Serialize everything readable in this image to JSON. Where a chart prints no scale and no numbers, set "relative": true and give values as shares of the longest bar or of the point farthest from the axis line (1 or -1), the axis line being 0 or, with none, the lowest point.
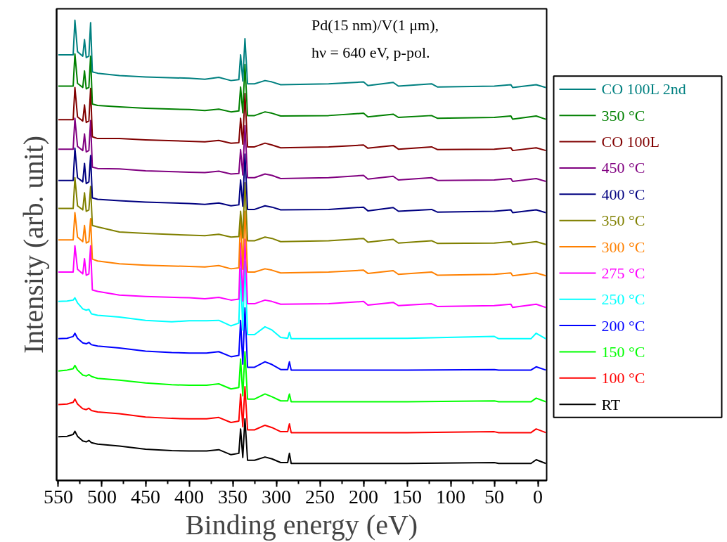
{
  "chart_data": {
    "type": "line",
    "relative": true,
    "xlabel": "Binding energy (eV)",
    "ylabel": "Intensity (arb. unit)",
    "xlim": [
      552,
      -10
    ],
    "xticks": [
      550,
      500,
      450,
      400,
      350,
      300,
      250,
      200,
      150,
      100,
      50,
      0
    ],
    "legend": "right",
    "grid": false,
    "annotations": [
      "Pd(15 nm)/V(1 μm),",
      "hν = 640 eV, p-pol."
    ],
    "series": [
      {
        "name": "CO 100L 2nd",
        "color": "#008080",
        "x": [
          550,
          540,
          533,
          531,
          528,
          522,
          520,
          518,
          515,
          513,
          511,
          505,
          480,
          450,
          400,
          382,
          366,
          352,
          343,
          341,
          338.5,
          336,
          333,
          325,
          313,
          305,
          295,
          240,
          200,
          195,
          166,
          160,
          122,
          115,
          50,
          31,
          29,
          2,
          -9
        ],
        "values": [
          0.925,
          0.925,
          0.925,
          1.0,
          0.932,
          0.922,
          0.958,
          0.919,
          0.922,
          0.995,
          0.888,
          0.885,
          0.88,
          0.877,
          0.874,
          0.872,
          0.876,
          0.869,
          0.871,
          0.925,
          0.868,
          0.96,
          0.862,
          0.862,
          0.869,
          0.866,
          0.86,
          0.862,
          0.866,
          0.858,
          0.865,
          0.857,
          0.862,
          0.855,
          0.857,
          0.86,
          0.854,
          0.86,
          0.854
        ]
      },
      {
        "name": "350 °C",
        "color": "#008000",
        "x": [
          550,
          540,
          533,
          531,
          528,
          522,
          520,
          518,
          515,
          513,
          511,
          505,
          480,
          450,
          400,
          382,
          366,
          352,
          343,
          341,
          338.5,
          336,
          333,
          325,
          313,
          305,
          295,
          240,
          200,
          195,
          166,
          160,
          122,
          115,
          50,
          31,
          29,
          2,
          -9
        ],
        "values": [
          0.857,
          0.857,
          0.857,
          0.927,
          0.863,
          0.854,
          0.89,
          0.851,
          0.854,
          0.922,
          0.818,
          0.815,
          0.812,
          0.809,
          0.806,
          0.804,
          0.807,
          0.801,
          0.803,
          0.855,
          0.799,
          0.904,
          0.793,
          0.793,
          0.801,
          0.798,
          0.792,
          0.793,
          0.798,
          0.79,
          0.796,
          0.789,
          0.793,
          0.787,
          0.789,
          0.792,
          0.785,
          0.792,
          0.785
        ]
      },
      {
        "name": "CO 100L",
        "color": "#800000",
        "x": [
          550,
          540,
          533,
          531,
          528,
          522,
          520,
          518,
          515,
          513,
          511,
          505,
          480,
          450,
          400,
          382,
          366,
          352,
          343,
          341,
          338.5,
          336,
          333,
          325,
          313,
          305,
          295,
          240,
          200,
          195,
          166,
          160,
          122,
          115,
          50,
          31,
          29,
          2,
          -9
        ],
        "values": [
          0.784,
          0.784,
          0.784,
          0.854,
          0.79,
          0.781,
          0.816,
          0.778,
          0.781,
          0.852,
          0.747,
          0.743,
          0.743,
          0.74,
          0.737,
          0.736,
          0.739,
          0.733,
          0.734,
          0.787,
          0.731,
          0.841,
          0.725,
          0.725,
          0.733,
          0.729,
          0.723,
          0.725,
          0.729,
          0.722,
          0.728,
          0.72,
          0.725,
          0.719,
          0.72,
          0.723,
          0.717,
          0.723,
          0.717
        ]
      },
      {
        "name": "450 °C",
        "color": "#800080",
        "x": [
          550,
          540,
          533,
          531,
          528,
          522,
          520,
          518,
          515,
          513,
          511,
          505,
          480,
          450,
          400,
          382,
          366,
          352,
          343,
          341,
          338.5,
          336,
          333,
          325,
          313,
          305,
          295,
          240,
          200,
          195,
          166,
          160,
          122,
          115,
          50,
          31,
          29,
          2,
          -9
        ],
        "values": [
          0.72,
          0.72,
          0.72,
          0.787,
          0.726,
          0.717,
          0.753,
          0.714,
          0.717,
          0.782,
          0.681,
          0.678,
          0.677,
          0.673,
          0.67,
          0.669,
          0.672,
          0.666,
          0.667,
          0.719,
          0.664,
          0.771,
          0.658,
          0.658,
          0.666,
          0.663,
          0.656,
          0.658,
          0.663,
          0.655,
          0.661,
          0.653,
          0.658,
          0.652,
          0.653,
          0.656,
          0.65,
          0.656,
          0.65
        ]
      },
      {
        "name": "400 °C",
        "color": "#000080",
        "x": [
          550,
          540,
          533,
          531,
          528,
          522,
          520,
          518,
          515,
          513,
          511,
          505,
          480,
          450,
          400,
          382,
          366,
          352,
          343,
          341,
          338.5,
          336,
          333,
          325,
          313,
          305,
          295,
          240,
          200,
          195,
          166,
          160,
          122,
          115,
          50,
          31,
          29,
          2,
          -9
        ],
        "values": [
          0.652,
          0.652,
          0.652,
          0.722,
          0.658,
          0.649,
          0.689,
          0.645,
          0.649,
          0.706,
          0.614,
          0.611,
          0.608,
          0.605,
          0.602,
          0.6,
          0.603,
          0.597,
          0.599,
          0.653,
          0.596,
          0.709,
          0.589,
          0.589,
          0.597,
          0.594,
          0.588,
          0.589,
          0.594,
          0.586,
          0.593,
          0.585,
          0.589,
          0.583,
          0.585,
          0.588,
          0.582,
          0.588,
          0.582
        ]
      },
      {
        "name": "350 °C",
        "color": "#808000",
        "x": [
          550,
          540,
          533,
          531,
          528,
          522,
          520,
          518,
          515,
          513,
          511,
          505,
          480,
          450,
          400,
          382,
          366,
          352,
          343,
          341,
          338.5,
          336,
          333,
          325,
          313,
          305,
          295,
          240,
          200,
          195,
          166,
          160,
          122,
          115,
          50,
          31,
          29,
          2,
          -9
        ],
        "values": [
          0.591,
          0.591,
          0.591,
          0.658,
          0.597,
          0.588,
          0.625,
          0.585,
          0.588,
          0.639,
          0.554,
          0.551,
          0.54,
          0.537,
          0.533,
          0.532,
          0.535,
          0.529,
          0.53,
          0.585,
          0.527,
          0.647,
          0.521,
          0.521,
          0.529,
          0.526,
          0.519,
          0.521,
          0.526,
          0.518,
          0.524,
          0.516,
          0.521,
          0.515,
          0.516,
          0.519,
          0.513,
          0.519,
          0.513
        ]
      },
      {
        "name": "300 °C",
        "color": "#ff8000",
        "x": [
          550,
          540,
          533,
          531,
          528,
          522,
          520,
          518,
          515,
          513,
          511,
          505,
          480,
          450,
          400,
          382,
          366,
          352,
          343,
          341,
          338.5,
          336,
          333,
          325,
          313,
          305,
          295,
          240,
          200,
          195,
          166,
          160,
          122,
          115,
          50,
          31,
          29,
          2,
          -9
        ],
        "values": [
          0.523,
          0.523,
          0.523,
          0.582,
          0.529,
          0.519,
          0.554,
          0.516,
          0.519,
          0.569,
          0.481,
          0.477,
          0.471,
          0.468,
          0.465,
          0.464,
          0.467,
          0.46,
          0.462,
          0.577,
          0.459,
          0.585,
          0.453,
          0.453,
          0.46,
          0.457,
          0.451,
          0.453,
          0.457,
          0.45,
          0.456,
          0.448,
          0.453,
          0.446,
          0.448,
          0.451,
          0.445,
          0.451,
          0.445
        ]
      },
      {
        "name": "275 °C",
        "color": "#ff00ff",
        "x": [
          550,
          540,
          533,
          531,
          528,
          522,
          520,
          518,
          515,
          513,
          511,
          505,
          480,
          450,
          400,
          382,
          366,
          352,
          343,
          341,
          338.5,
          336,
          333,
          325,
          313,
          305,
          295,
          240,
          200,
          195,
          166,
          160,
          122,
          115,
          50,
          31,
          29,
          2,
          -9
        ],
        "values": [
          0.453,
          0.453,
          0.453,
          0.51,
          0.459,
          0.449,
          0.482,
          0.446,
          0.449,
          0.51,
          0.414,
          0.411,
          0.403,
          0.4,
          0.397,
          0.395,
          0.398,
          0.392,
          0.394,
          0.516,
          0.39,
          0.524,
          0.384,
          0.384,
          0.392,
          0.389,
          0.383,
          0.384,
          0.389,
          0.381,
          0.387,
          0.38,
          0.384,
          0.378,
          0.38,
          0.383,
          0.376,
          0.383,
          0.376
        ]
      },
      {
        "name": "250 °C",
        "color": "#00ffff",
        "x": [
          550,
          540,
          533,
          531,
          528,
          522,
          518,
          515,
          512,
          505,
          480,
          450,
          420,
          400,
          380,
          366,
          352,
          343,
          341,
          338.5,
          336,
          333,
          325,
          313,
          305,
          295,
          287,
          285,
          283,
          250,
          150,
          50,
          45,
          8,
          2,
          -9
        ],
        "values": [
          0.389,
          0.39,
          0.392,
          0.397,
          0.386,
          0.373,
          0.37,
          0.372,
          0.362,
          0.359,
          0.355,
          0.348,
          0.345,
          0.347,
          0.347,
          0.348,
          0.336,
          0.342,
          0.46,
          0.327,
          0.476,
          0.317,
          0.317,
          0.334,
          0.327,
          0.311,
          0.309,
          0.322,
          0.308,
          0.308,
          0.309,
          0.313,
          0.308,
          0.308,
          0.32,
          0.308
        ]
      },
      {
        "name": "200 °C",
        "color": "#0000ff",
        "x": [
          550,
          540,
          533,
          531,
          528,
          522,
          518,
          515,
          512,
          505,
          480,
          450,
          420,
          400,
          380,
          366,
          352,
          343,
          341,
          338.5,
          336,
          333,
          325,
          313,
          305,
          295,
          287,
          285,
          283,
          250,
          150,
          50,
          45,
          8,
          2,
          -9
        ],
        "values": [
          0.308,
          0.309,
          0.313,
          0.32,
          0.309,
          0.299,
          0.297,
          0.3,
          0.295,
          0.292,
          0.288,
          0.281,
          0.278,
          0.277,
          0.277,
          0.28,
          0.269,
          0.272,
          0.348,
          0.253,
          0.375,
          0.246,
          0.246,
          0.258,
          0.252,
          0.241,
          0.241,
          0.258,
          0.24,
          0.24,
          0.24,
          0.241,
          0.24,
          0.24,
          0.247,
          0.24
        ]
      },
      {
        "name": "150 °C",
        "color": "#00ff00",
        "x": [
          550,
          540,
          533,
          531,
          528,
          522,
          518,
          515,
          512,
          505,
          480,
          450,
          420,
          400,
          380,
          366,
          352,
          343,
          341,
          338.5,
          336,
          333,
          325,
          313,
          305,
          295,
          287,
          285,
          283,
          250,
          150,
          50,
          45,
          8,
          2,
          -9
        ],
        "values": [
          0.238,
          0.24,
          0.243,
          0.25,
          0.24,
          0.229,
          0.227,
          0.23,
          0.226,
          0.222,
          0.218,
          0.212,
          0.208,
          0.207,
          0.207,
          0.21,
          0.199,
          0.202,
          0.264,
          0.184,
          0.28,
          0.177,
          0.177,
          0.188,
          0.182,
          0.173,
          0.173,
          0.188,
          0.171,
          0.171,
          0.171,
          0.173,
          0.171,
          0.171,
          0.179,
          0.171
        ]
      },
      {
        "name": "100 °C",
        "color": "#ff0000",
        "x": [
          550,
          540,
          533,
          531,
          528,
          522,
          518,
          515,
          512,
          505,
          480,
          450,
          420,
          400,
          380,
          366,
          352,
          343,
          341,
          338.5,
          336,
          333,
          325,
          313,
          305,
          295,
          287,
          285,
          283,
          250,
          150,
          50,
          45,
          8,
          2,
          -9
        ],
        "values": [
          0.165,
          0.166,
          0.17,
          0.177,
          0.166,
          0.156,
          0.154,
          0.157,
          0.152,
          0.149,
          0.145,
          0.138,
          0.135,
          0.134,
          0.134,
          0.137,
          0.126,
          0.129,
          0.188,
          0.117,
          0.204,
          0.11,
          0.11,
          0.12,
          0.115,
          0.106,
          0.106,
          0.123,
          0.104,
          0.104,
          0.104,
          0.106,
          0.104,
          0.104,
          0.112,
          0.104
        ]
      },
      {
        "name": "RT",
        "color": "#000000",
        "x": [
          550,
          540,
          533,
          531,
          528,
          522,
          518,
          515,
          512,
          505,
          480,
          450,
          420,
          400,
          380,
          366,
          352,
          343,
          341,
          338.5,
          336,
          333,
          325,
          313,
          305,
          295,
          287,
          285,
          283,
          250,
          150,
          50,
          45,
          8,
          2,
          -9
        ],
        "values": [
          0.095,
          0.096,
          0.1,
          0.107,
          0.096,
          0.086,
          0.084,
          0.087,
          0.082,
          0.079,
          0.075,
          0.068,
          0.065,
          0.064,
          0.064,
          0.067,
          0.056,
          0.059,
          0.112,
          0.05,
          0.134,
          0.044,
          0.044,
          0.051,
          0.047,
          0.039,
          0.039,
          0.059,
          0.037,
          0.037,
          0.037,
          0.039,
          0.037,
          0.037,
          0.045,
          0.037
        ]
      }
    ]
  }
}
